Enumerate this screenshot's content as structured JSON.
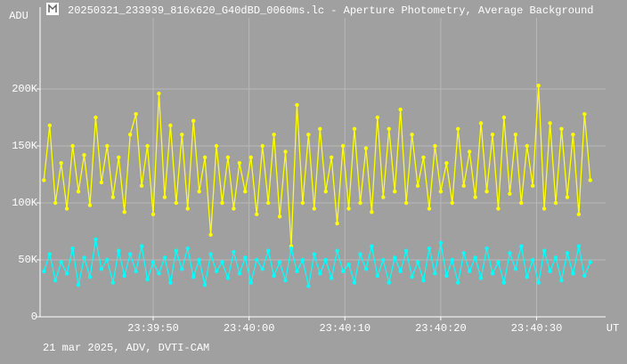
{
  "chart_data": {
    "type": "line",
    "title": "20250321_233939_816x620_G40dBD_0060ms.lc - Aperture Photometry, Average Background",
    "ylabel": "ADU",
    "xlabel": "UT",
    "footer": "21 mar 2025, ADV, DVTI-CAM",
    "grid": true,
    "xlim": [
      38.2,
      97.2
    ],
    "xticks": [
      {
        "value": 50,
        "label": "23:39:50"
      },
      {
        "value": 60,
        "label": "23:40:00"
      },
      {
        "value": 70,
        "label": "23:40:10"
      },
      {
        "value": 80,
        "label": "23:40:20"
      },
      {
        "value": 90,
        "label": "23:40:30"
      }
    ],
    "ylim": [
      0,
      262500
    ],
    "yticks": [
      0,
      {
        "value": 50000,
        "label": "50K"
      },
      {
        "value": 100000,
        "label": "100K"
      },
      {
        "value": 150000,
        "label": "150K"
      },
      {
        "value": 200000,
        "label": "200K"
      }
    ],
    "x": [
      38.6,
      39.2,
      39.8,
      40.4,
      41,
      41.6,
      42.2,
      42.8,
      43.4,
      44,
      44.6,
      45.2,
      45.8,
      46.4,
      47,
      47.6,
      48.2,
      48.8,
      49.4,
      50,
      50.6,
      51.2,
      51.8,
      52.4,
      53,
      53.6,
      54.2,
      54.8,
      55.4,
      56,
      56.6,
      57.2,
      57.8,
      58.4,
      59,
      59.6,
      60.2,
      60.8,
      61.4,
      62,
      62.6,
      63.2,
      63.8,
      64.4,
      65,
      65.6,
      66.2,
      66.8,
      67.4,
      68,
      68.6,
      69.2,
      69.8,
      70.4,
      71,
      71.6,
      72.2,
      72.8,
      73.4,
      74,
      74.6,
      75.2,
      75.8,
      76.4,
      77,
      77.6,
      78.2,
      78.8,
      79.4,
      80,
      80.6,
      81.2,
      81.8,
      82.4,
      83,
      83.6,
      84.2,
      84.8,
      85.4,
      86,
      86.6,
      87.2,
      87.8,
      88.4,
      89,
      89.6,
      90.2,
      90.8,
      91.4,
      92,
      92.6,
      93.2,
      93.8,
      94.4,
      95,
      95.6
    ],
    "series": [
      {
        "color": "#ffff00",
        "values": [
          120000,
          168000,
          100000,
          135000,
          95000,
          150000,
          110000,
          142000,
          98000,
          175000,
          118000,
          150000,
          105000,
          140000,
          92000,
          160000,
          178000,
          115000,
          150000,
          90000,
          196000,
          105000,
          168000,
          100000,
          160000,
          95000,
          172000,
          110000,
          140000,
          72000,
          150000,
          100000,
          140000,
          95000,
          135000,
          110000,
          140000,
          90000,
          150000,
          100000,
          160000,
          88000,
          145000,
          62000,
          186000,
          100000,
          160000,
          95000,
          165000,
          110000,
          140000,
          82000,
          150000,
          95000,
          165000,
          100000,
          148000,
          92000,
          175000,
          105000,
          165000,
          110000,
          182000,
          100000,
          160000,
          115000,
          140000,
          95000,
          150000,
          110000,
          135000,
          100000,
          165000,
          115000,
          145000,
          105000,
          170000,
          110000,
          160000,
          95000,
          175000,
          108000,
          160000,
          100000,
          150000,
          115000,
          203000,
          95000,
          170000,
          100000,
          165000,
          105000,
          160000,
          90000,
          178000,
          120000
        ]
      },
      {
        "color": "#00ffff",
        "values": [
          40000,
          55000,
          32000,
          48000,
          38000,
          60000,
          28000,
          52000,
          35000,
          68000,
          42000,
          50000,
          30000,
          58000,
          36000,
          55000,
          40000,
          62000,
          33000,
          48000,
          38000,
          52000,
          30000,
          58000,
          42000,
          60000,
          35000,
          50000,
          28000,
          55000,
          40000,
          48000,
          34000,
          57000,
          38000,
          52000,
          30000,
          50000,
          42000,
          58000,
          36000,
          48000,
          32000,
          60000,
          40000,
          50000,
          27000,
          55000,
          38000,
          50000,
          34000,
          58000,
          40000,
          46000,
          30000,
          55000,
          42000,
          62000,
          36000,
          50000,
          30000,
          52000,
          40000,
          58000,
          35000,
          48000,
          32000,
          60000,
          38000,
          65000,
          36000,
          50000,
          30000,
          56000,
          40000,
          52000,
          34000,
          60000,
          38000,
          48000,
          30000,
          56000,
          42000,
          62000,
          35000,
          50000,
          30000,
          58000,
          40000,
          52000,
          32000,
          56000,
          38000,
          62000,
          36000,
          48000
        ]
      }
    ]
  }
}
